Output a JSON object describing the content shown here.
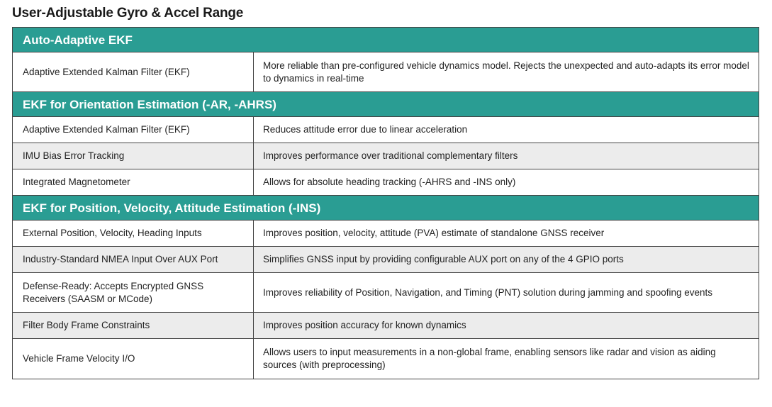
{
  "title": "User-Adjustable Gyro & Accel Range",
  "colors": {
    "header_bg": "#2a9d93",
    "header_text": "#ffffff",
    "shaded_row": "#ececec",
    "border": "#444444"
  },
  "sections": [
    {
      "heading": "Auto-Adaptive EKF",
      "rows": [
        {
          "feature": "Adaptive Extended Kalman Filter (EKF)",
          "description": "More reliable than pre-configured vehicle dynamics model. Rejects the unexpected and auto-adapts its error model to dynamics in real-time"
        }
      ]
    },
    {
      "heading": "EKF for Orientation Estimation (-AR, -AHRS)",
      "rows": [
        {
          "feature": "Adaptive Extended Kalman Filter (EKF)",
          "description": "Reduces attitude error due to linear acceleration"
        },
        {
          "feature": "IMU Bias Error Tracking",
          "description": "Improves performance over traditional complementary filters"
        },
        {
          "feature": "Integrated Magnetometer",
          "description": "Allows for absolute heading tracking (-AHRS and -INS only)"
        }
      ]
    },
    {
      "heading": "EKF for Position, Velocity, Attitude Estimation (-INS)",
      "rows": [
        {
          "feature": "External Position, Velocity, Heading Inputs",
          "description": "Improves position, velocity, attitude (PVA) estimate of standalone GNSS receiver"
        },
        {
          "feature": "Industry-Standard NMEA Input Over AUX Port",
          "description": "Simplifies GNSS input by providing configurable AUX port on any of the 4 GPIO ports"
        },
        {
          "feature": "Defense-Ready: Accepts Encrypted GNSS Receivers (SAASM or MCode)",
          "description": "Improves reliability of Position, Navigation, and Timing (PNT) solution during jamming and spoofing events"
        },
        {
          "feature": "Filter Body Frame Constraints",
          "description": "Improves position accuracy for known dynamics"
        },
        {
          "feature": "Vehicle Frame Velocity I/O",
          "description": "Allows users to input measurements in a non-global frame, enabling sensors like radar and vision as aiding sources (with preprocessing)"
        }
      ]
    }
  ]
}
